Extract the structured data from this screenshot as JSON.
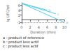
{
  "chart_data": {
    "type": "line",
    "title": "",
    "xlabel": "Duration (min)",
    "ylabel": "lg UFC/ml",
    "xlim": [
      0,
      10
    ],
    "ylim": [
      -1.5,
      7.0
    ],
    "xticks": [
      0,
      2,
      4,
      6,
      8,
      10
    ],
    "yticks": [
      -1,
      0,
      2,
      4,
      6
    ],
    "grid": false,
    "series": [
      {
        "name": "a",
        "color": "#55ccee",
        "line_style": "solid",
        "x": [
          0,
          10
        ],
        "values": [
          6.8,
          -1.0
        ]
      },
      {
        "name": "b",
        "color": "#55ccee",
        "line_style": "solid",
        "x": [
          0,
          6
        ],
        "values": [
          6.8,
          4.0
        ]
      },
      {
        "name": "c",
        "color": "#55ccee",
        "line_style": "solid",
        "x": [
          0,
          8
        ],
        "values": [
          6.8,
          2.5
        ]
      }
    ],
    "hline": {
      "y": -1.0,
      "color": "#888888",
      "line_style": "dashed"
    },
    "annotations": [
      "a : product of reference",
      "b : product less actif",
      "c : product less actif"
    ]
  }
}
